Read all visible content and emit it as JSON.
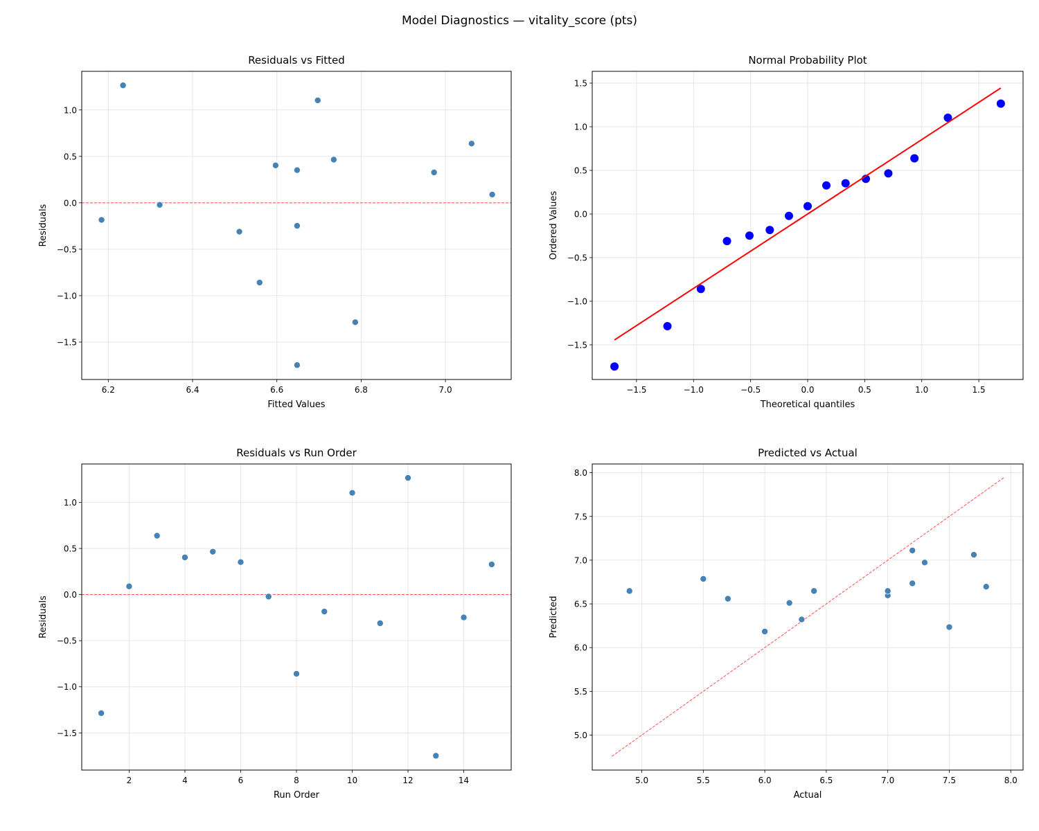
{
  "figure": {
    "title": "Model Diagnostics — vitality_score (pts)"
  },
  "colors": {
    "point": "#4682b4",
    "qq_point": "#0000ff",
    "qq_line": "#ff0000",
    "reference_line": "#ff4d4d",
    "grid": "#e6e6e6"
  },
  "chart_data": [
    {
      "id": "residuals-vs-fitted",
      "type": "scatter",
      "title": "Residuals vs Fitted",
      "xlabel": "Fitted Values",
      "ylabel": "Residuals",
      "xlim": [
        6.137,
        7.156
      ],
      "ylim": [
        -1.903,
        1.416
      ],
      "xticks": [
        "6.2",
        "6.4",
        "6.6",
        "6.8",
        "7.0"
      ],
      "yticks": [
        "-1.5",
        "-1.0",
        "-0.5",
        "0.0",
        "0.5",
        "1.0"
      ],
      "grid": true,
      "hline": {
        "y": 0,
        "style": "dashed"
      },
      "x": [
        6.786,
        7.111,
        7.062,
        6.597,
        6.735,
        6.648,
        6.322,
        6.559,
        6.184,
        6.697,
        6.511,
        6.235,
        6.648,
        6.648,
        6.973
      ],
      "y": [
        -1.286,
        0.089,
        0.638,
        0.403,
        0.465,
        0.352,
        -0.022,
        -0.859,
        -0.184,
        1.103,
        -0.311,
        1.265,
        -1.748,
        -0.248,
        0.327
      ]
    },
    {
      "id": "normal-probability-plot",
      "type": "scatter",
      "title": "Normal Probability Plot",
      "xlabel": "Theoretical quantiles",
      "ylabel": "Ordered Values",
      "xlim": [
        -1.888,
        1.888
      ],
      "ylim": [
        -1.897,
        1.635
      ],
      "xticks": [
        "-1.5",
        "-1.0",
        "-0.5",
        "0.0",
        "0.5",
        "1.0",
        "1.5"
      ],
      "yticks": [
        "-1.5",
        "-1.0",
        "-0.5",
        "0.0",
        "0.5",
        "1.0",
        "1.5"
      ],
      "grid": true,
      "x": [
        -1.693,
        -1.229,
        -0.936,
        -0.707,
        -0.51,
        -0.332,
        -0.164,
        0.0,
        0.164,
        0.332,
        0.51,
        0.707,
        0.936,
        1.229,
        1.693
      ],
      "y": [
        -1.748,
        -1.286,
        -0.859,
        -0.311,
        -0.248,
        -0.184,
        -0.022,
        0.089,
        0.327,
        0.352,
        0.403,
        0.465,
        0.638,
        1.103,
        1.265
      ],
      "fit_line": {
        "slope": 0.853,
        "intercept": 0.0
      }
    },
    {
      "id": "residuals-vs-run-order",
      "type": "scatter",
      "title": "Residuals vs Run Order",
      "xlabel": "Run Order",
      "ylabel": "Residuals",
      "xlim": [
        0.3,
        15.7
      ],
      "ylim": [
        -1.903,
        1.416
      ],
      "xticks": [
        "2",
        "4",
        "6",
        "8",
        "10",
        "12",
        "14"
      ],
      "yticks": [
        "-1.5",
        "-1.0",
        "-0.5",
        "0.0",
        "0.5",
        "1.0"
      ],
      "grid": true,
      "hline": {
        "y": 0,
        "style": "dashed"
      },
      "x": [
        1,
        2,
        3,
        4,
        5,
        6,
        7,
        8,
        9,
        10,
        11,
        12,
        13,
        14,
        15
      ],
      "y": [
        -1.286,
        0.089,
        0.638,
        0.403,
        0.465,
        0.352,
        -0.022,
        -0.859,
        -0.184,
        1.103,
        -0.311,
        1.265,
        -1.748,
        -0.248,
        0.327
      ]
    },
    {
      "id": "predicted-vs-actual",
      "type": "scatter",
      "title": "Predicted vs Actual",
      "xlabel": "Actual",
      "ylabel": "Predicted",
      "xlim": [
        4.597,
        8.1
      ],
      "ylim": [
        4.6,
        8.1
      ],
      "xticks": [
        "5.0",
        "5.5",
        "6.0",
        "6.5",
        "7.0",
        "7.5",
        "8.0"
      ],
      "yticks": [
        "5.0",
        "5.5",
        "6.0",
        "6.5",
        "7.0",
        "7.5",
        "8.0"
      ],
      "grid": true,
      "identity_line": {
        "from": 4.757,
        "to": 7.95,
        "style": "dashed"
      },
      "x": [
        5.5,
        7.2,
        7.7,
        7.0,
        7.2,
        7.0,
        6.3,
        5.7,
        6.0,
        7.8,
        6.2,
        7.5,
        4.9,
        6.4,
        7.3
      ],
      "y": [
        6.786,
        7.111,
        7.062,
        6.597,
        6.735,
        6.648,
        6.322,
        6.559,
        6.184,
        6.697,
        6.511,
        6.235,
        6.648,
        6.648,
        6.973
      ]
    }
  ]
}
